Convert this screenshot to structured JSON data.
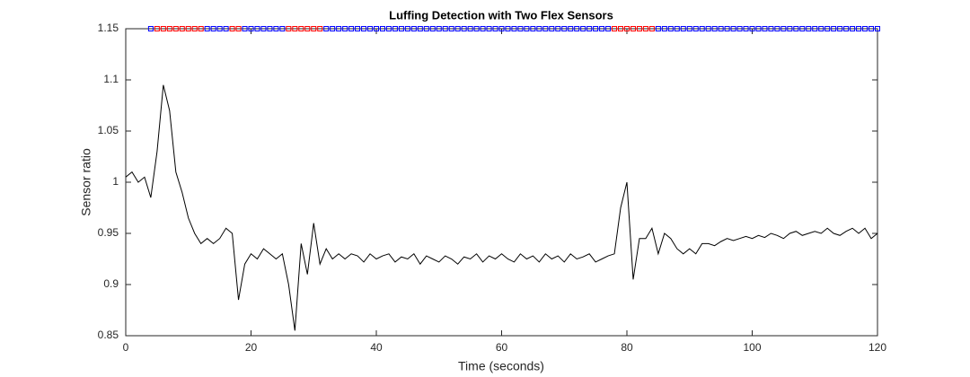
{
  "chart_data": {
    "type": "line",
    "title": "Luffing Detection with Two Flex Sensors",
    "x_label": "Time (seconds)",
    "y_label": "Sensor ratio",
    "xlim": [
      0,
      120
    ],
    "xticks": [
      0,
      20,
      40,
      60,
      80,
      100,
      120
    ],
    "ylim": [
      0.85,
      1.15
    ],
    "yticks": [
      0.85,
      0.9,
      0.95,
      1,
      1.05,
      1.1,
      1.15
    ],
    "series": [
      {
        "color": "#000000",
        "marker": "none",
        "x": [
          0,
          1,
          2,
          3,
          4,
          5,
          6,
          7,
          8,
          9,
          10,
          11,
          12,
          13,
          14,
          15,
          16,
          17,
          18,
          19,
          20,
          21,
          22,
          23,
          24,
          25,
          26,
          27,
          28,
          29,
          30,
          31,
          32,
          33,
          34,
          35,
          36,
          37,
          38,
          39,
          40,
          41,
          42,
          43,
          44,
          45,
          46,
          47,
          48,
          49,
          50,
          51,
          52,
          53,
          54,
          55,
          56,
          57,
          58,
          59,
          60,
          61,
          62,
          63,
          64,
          65,
          66,
          67,
          68,
          69,
          70,
          71,
          72,
          73,
          74,
          75,
          76,
          77,
          78,
          79,
          80,
          81,
          82,
          83,
          84,
          85,
          86,
          87,
          88,
          89,
          90,
          91,
          92,
          93,
          94,
          95,
          96,
          97,
          98,
          99,
          100,
          101,
          102,
          103,
          104,
          105,
          106,
          107,
          108,
          109,
          110,
          111,
          112,
          113,
          114,
          115,
          116,
          117,
          118,
          119,
          120
        ],
        "values": [
          1.005,
          1.01,
          1.0,
          1.005,
          0.985,
          1.03,
          1.095,
          1.07,
          1.01,
          0.99,
          0.965,
          0.95,
          0.94,
          0.945,
          0.94,
          0.945,
          0.955,
          0.95,
          0.885,
          0.92,
          0.93,
          0.925,
          0.935,
          0.93,
          0.925,
          0.93,
          0.9,
          0.855,
          0.94,
          0.91,
          0.96,
          0.92,
          0.935,
          0.925,
          0.93,
          0.925,
          0.93,
          0.928,
          0.922,
          0.93,
          0.925,
          0.928,
          0.93,
          0.922,
          0.927,
          0.925,
          0.93,
          0.92,
          0.928,
          0.925,
          0.922,
          0.928,
          0.925,
          0.92,
          0.927,
          0.925,
          0.93,
          0.922,
          0.928,
          0.925,
          0.93,
          0.925,
          0.922,
          0.93,
          0.925,
          0.928,
          0.922,
          0.93,
          0.925,
          0.928,
          0.922,
          0.93,
          0.925,
          0.927,
          0.93,
          0.922,
          0.925,
          0.928,
          0.93,
          0.975,
          1.0,
          0.905,
          0.945,
          0.945,
          0.955,
          0.93,
          0.95,
          0.945,
          0.935,
          0.93,
          0.935,
          0.93,
          0.94,
          0.94,
          0.938,
          0.942,
          0.945,
          0.943,
          0.945,
          0.947,
          0.945,
          0.948,
          0.946,
          0.95,
          0.948,
          0.945,
          0.95,
          0.952,
          0.948,
          0.95,
          0.952,
          0.95,
          0.955,
          0.95,
          0.948,
          0.952,
          0.955,
          0.95,
          0.955,
          0.945,
          0.95
        ]
      },
      {
        "color": "#ff0000",
        "marker": "square",
        "x": [
          5,
          6,
          7,
          8,
          9,
          10,
          11,
          12,
          17,
          18,
          26,
          27,
          28,
          29,
          30,
          31,
          78,
          79,
          80,
          81,
          82,
          83,
          84
        ],
        "values": [
          1.15,
          1.15,
          1.15,
          1.15,
          1.15,
          1.15,
          1.15,
          1.15,
          1.15,
          1.15,
          1.15,
          1.15,
          1.15,
          1.15,
          1.15,
          1.15,
          1.15,
          1.15,
          1.15,
          1.15,
          1.15,
          1.15,
          1.15
        ]
      },
      {
        "color": "#0000ff",
        "marker": "square",
        "x": [
          4,
          13,
          14,
          15,
          16,
          19,
          20,
          21,
          22,
          23,
          24,
          25,
          32,
          33,
          34,
          35,
          36,
          37,
          38,
          39,
          40,
          41,
          42,
          43,
          44,
          45,
          46,
          47,
          48,
          49,
          50,
          51,
          52,
          53,
          54,
          55,
          56,
          57,
          58,
          59,
          60,
          61,
          62,
          63,
          64,
          65,
          66,
          67,
          68,
          69,
          70,
          71,
          72,
          73,
          74,
          75,
          76,
          77,
          85,
          86,
          87,
          88,
          89,
          90,
          91,
          92,
          93,
          94,
          95,
          96,
          97,
          98,
          99,
          100,
          101,
          102,
          103,
          104,
          105,
          106,
          107,
          108,
          109,
          110,
          111,
          112,
          113,
          114,
          115,
          116,
          117,
          118,
          119,
          120
        ],
        "values": [
          1.15,
          1.15,
          1.15,
          1.15,
          1.15,
          1.15,
          1.15,
          1.15,
          1.15,
          1.15,
          1.15,
          1.15,
          1.15,
          1.15,
          1.15,
          1.15,
          1.15,
          1.15,
          1.15,
          1.15,
          1.15,
          1.15,
          1.15,
          1.15,
          1.15,
          1.15,
          1.15,
          1.15,
          1.15,
          1.15,
          1.15,
          1.15,
          1.15,
          1.15,
          1.15,
          1.15,
          1.15,
          1.15,
          1.15,
          1.15,
          1.15,
          1.15,
          1.15,
          1.15,
          1.15,
          1.15,
          1.15,
          1.15,
          1.15,
          1.15,
          1.15,
          1.15,
          1.15,
          1.15,
          1.15,
          1.15,
          1.15,
          1.15,
          1.15,
          1.15,
          1.15,
          1.15,
          1.15,
          1.15,
          1.15,
          1.15,
          1.15,
          1.15,
          1.15,
          1.15,
          1.15,
          1.15,
          1.15,
          1.15,
          1.15,
          1.15,
          1.15,
          1.15,
          1.15,
          1.15,
          1.15,
          1.15,
          1.15,
          1.15,
          1.15,
          1.15,
          1.15,
          1.15,
          1.15,
          1.15,
          1.15,
          1.15,
          1.15,
          1.15
        ]
      }
    ]
  }
}
